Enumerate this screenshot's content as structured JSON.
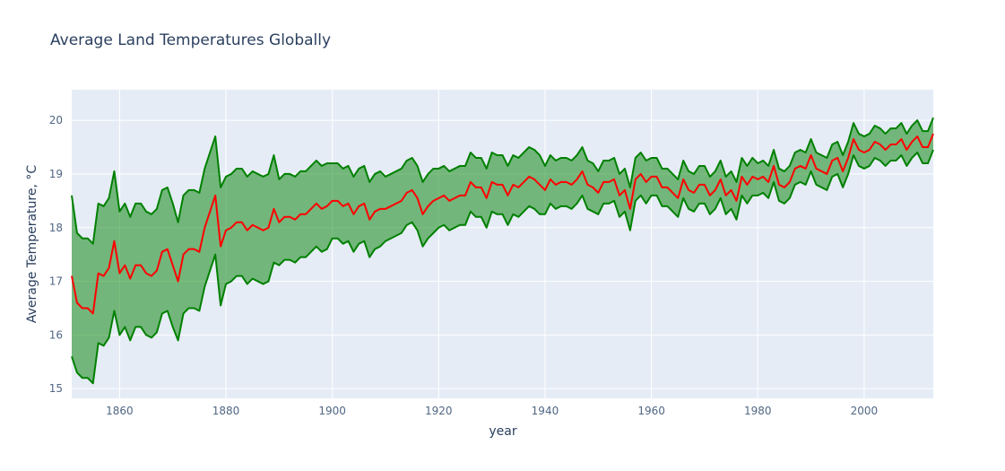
{
  "chart_data": {
    "type": "line",
    "title": "Average Land Temperatures Globally",
    "xlabel": "year",
    "ylabel": "Average Temperature, °C",
    "x": [
      1851,
      1852,
      1853,
      1854,
      1855,
      1856,
      1857,
      1858,
      1859,
      1860,
      1861,
      1862,
      1863,
      1864,
      1865,
      1866,
      1867,
      1868,
      1869,
      1870,
      1871,
      1872,
      1873,
      1874,
      1875,
      1876,
      1877,
      1878,
      1879,
      1880,
      1881,
      1882,
      1883,
      1884,
      1885,
      1886,
      1887,
      1888,
      1889,
      1890,
      1891,
      1892,
      1893,
      1894,
      1895,
      1896,
      1897,
      1898,
      1899,
      1900,
      1901,
      1902,
      1903,
      1904,
      1905,
      1906,
      1907,
      1908,
      1909,
      1910,
      1911,
      1912,
      1913,
      1914,
      1915,
      1916,
      1917,
      1918,
      1919,
      1920,
      1921,
      1922,
      1923,
      1924,
      1925,
      1926,
      1927,
      1928,
      1929,
      1930,
      1931,
      1932,
      1933,
      1934,
      1935,
      1936,
      1937,
      1938,
      1939,
      1940,
      1941,
      1942,
      1943,
      1944,
      1945,
      1946,
      1947,
      1948,
      1949,
      1950,
      1951,
      1952,
      1953,
      1954,
      1955,
      1956,
      1957,
      1958,
      1959,
      1960,
      1961,
      1962,
      1963,
      1964,
      1965,
      1966,
      1967,
      1968,
      1969,
      1970,
      1971,
      1972,
      1973,
      1974,
      1975,
      1976,
      1977,
      1978,
      1979,
      1980,
      1981,
      1982,
      1983,
      1984,
      1985,
      1986,
      1987,
      1988,
      1989,
      1990,
      1991,
      1992,
      1993,
      1994,
      1995,
      1996,
      1997,
      1998,
      1999,
      2000,
      2001,
      2002,
      2003,
      2004,
      2005,
      2006,
      2007,
      2008,
      2009,
      2010,
      2011,
      2012,
      2013
    ],
    "series": [
      {
        "color": "#008000",
        "values": [
          18.6,
          17.9,
          17.8,
          17.8,
          17.7,
          18.45,
          18.4,
          18.55,
          19.05,
          18.3,
          18.45,
          18.2,
          18.45,
          18.45,
          18.3,
          18.25,
          18.35,
          18.7,
          18.75,
          18.45,
          18.1,
          18.6,
          18.7,
          18.7,
          18.65,
          19.1,
          19.4,
          19.7,
          18.75,
          18.95,
          19.0,
          19.1,
          19.1,
          18.95,
          19.05,
          19.0,
          18.95,
          19.0,
          19.35,
          18.9,
          19.0,
          19.0,
          18.95,
          19.05,
          19.05,
          19.15,
          19.25,
          19.15,
          19.2,
          19.2,
          19.2,
          19.1,
          19.15,
          18.95,
          19.1,
          19.15,
          18.85,
          19.0,
          19.05,
          18.95,
          19.0,
          19.05,
          19.1,
          19.25,
          19.3,
          19.15,
          18.85,
          19.0,
          19.1,
          19.1,
          19.15,
          19.05,
          19.1,
          19.15,
          19.15,
          19.4,
          19.3,
          19.3,
          19.1,
          19.4,
          19.35,
          19.35,
          19.15,
          19.35,
          19.3,
          19.4,
          19.5,
          19.45,
          19.35,
          19.15,
          19.35,
          19.25,
          19.3,
          19.3,
          19.25,
          19.35,
          19.5,
          19.25,
          19.2,
          19.05,
          19.25,
          19.25,
          19.3,
          19.0,
          19.1,
          18.75,
          19.3,
          19.4,
          19.25,
          19.3,
          19.3,
          19.1,
          19.1,
          19.0,
          18.9,
          19.25,
          19.05,
          19.0,
          19.15,
          19.15,
          18.95,
          19.05,
          19.25,
          18.95,
          19.05,
          18.85,
          19.3,
          19.15,
          19.3,
          19.2,
          19.25,
          19.15,
          19.45,
          19.1,
          19.05,
          19.15,
          19.4,
          19.45,
          19.4,
          19.65,
          19.4,
          19.35,
          19.3,
          19.55,
          19.6,
          19.35,
          19.6,
          19.95,
          19.75,
          19.7,
          19.75,
          19.9,
          19.85,
          19.75,
          19.85,
          19.85,
          19.95,
          19.75,
          19.9,
          20.0,
          19.8,
          19.8,
          20.05
        ]
      },
      {
        "color": "#008000",
        "values": [
          15.6,
          15.3,
          15.2,
          15.2,
          15.1,
          15.85,
          15.8,
          15.95,
          16.45,
          16.0,
          16.15,
          15.9,
          16.15,
          16.15,
          16.0,
          15.95,
          16.05,
          16.4,
          16.45,
          16.15,
          15.9,
          16.4,
          16.5,
          16.5,
          16.45,
          16.9,
          17.2,
          17.5,
          16.55,
          16.95,
          17.0,
          17.1,
          17.1,
          16.95,
          17.05,
          17.0,
          16.95,
          17.0,
          17.35,
          17.3,
          17.4,
          17.4,
          17.35,
          17.45,
          17.45,
          17.55,
          17.65,
          17.55,
          17.6,
          17.8,
          17.8,
          17.7,
          17.75,
          17.55,
          17.7,
          17.75,
          17.45,
          17.6,
          17.65,
          17.75,
          17.8,
          17.85,
          17.9,
          18.05,
          18.1,
          17.95,
          17.65,
          17.8,
          17.9,
          18.0,
          18.05,
          17.95,
          18.0,
          18.05,
          18.05,
          18.3,
          18.2,
          18.2,
          18.0,
          18.3,
          18.25,
          18.25,
          18.05,
          18.25,
          18.2,
          18.3,
          18.4,
          18.35,
          18.25,
          18.25,
          18.45,
          18.35,
          18.4,
          18.4,
          18.35,
          18.45,
          18.6,
          18.35,
          18.3,
          18.25,
          18.45,
          18.45,
          18.5,
          18.2,
          18.3,
          17.95,
          18.5,
          18.6,
          18.45,
          18.6,
          18.6,
          18.4,
          18.4,
          18.3,
          18.2,
          18.55,
          18.35,
          18.3,
          18.45,
          18.45,
          18.25,
          18.35,
          18.55,
          18.25,
          18.35,
          18.15,
          18.6,
          18.45,
          18.6,
          18.6,
          18.65,
          18.55,
          18.85,
          18.5,
          18.45,
          18.55,
          18.8,
          18.85,
          18.8,
          19.05,
          18.8,
          18.75,
          18.7,
          18.95,
          19.0,
          18.75,
          19.0,
          19.35,
          19.15,
          19.1,
          19.15,
          19.3,
          19.25,
          19.15,
          19.25,
          19.25,
          19.35,
          19.15,
          19.3,
          19.4,
          19.2,
          19.2,
          19.45
        ]
      },
      {
        "color": "#ff0000",
        "values": [
          17.1,
          16.6,
          16.5,
          16.5,
          16.4,
          17.15,
          17.1,
          17.25,
          17.75,
          17.15,
          17.3,
          17.05,
          17.3,
          17.3,
          17.15,
          17.1,
          17.2,
          17.55,
          17.6,
          17.3,
          17.0,
          17.5,
          17.6,
          17.6,
          17.55,
          18.0,
          18.3,
          18.6,
          17.65,
          17.95,
          18.0,
          18.1,
          18.1,
          17.95,
          18.05,
          18.0,
          17.95,
          18.0,
          18.35,
          18.1,
          18.2,
          18.2,
          18.15,
          18.25,
          18.25,
          18.35,
          18.45,
          18.35,
          18.4,
          18.5,
          18.5,
          18.4,
          18.45,
          18.25,
          18.4,
          18.45,
          18.15,
          18.3,
          18.35,
          18.35,
          18.4,
          18.45,
          18.5,
          18.65,
          18.7,
          18.55,
          18.25,
          18.4,
          18.5,
          18.55,
          18.6,
          18.5,
          18.55,
          18.6,
          18.6,
          18.85,
          18.75,
          18.75,
          18.55,
          18.85,
          18.8,
          18.8,
          18.6,
          18.8,
          18.75,
          18.85,
          18.95,
          18.9,
          18.8,
          18.7,
          18.9,
          18.8,
          18.85,
          18.85,
          18.8,
          18.9,
          19.05,
          18.8,
          18.75,
          18.65,
          18.85,
          18.85,
          18.9,
          18.6,
          18.7,
          18.35,
          18.9,
          19.0,
          18.85,
          18.95,
          18.95,
          18.75,
          18.75,
          18.65,
          18.55,
          18.9,
          18.7,
          18.65,
          18.8,
          18.8,
          18.6,
          18.7,
          18.9,
          18.6,
          18.7,
          18.5,
          18.95,
          18.8,
          18.95,
          18.9,
          18.95,
          18.85,
          19.15,
          18.8,
          18.75,
          18.85,
          19.1,
          19.15,
          19.1,
          19.35,
          19.1,
          19.05,
          19.0,
          19.25,
          19.3,
          19.05,
          19.3,
          19.65,
          19.45,
          19.4,
          19.45,
          19.6,
          19.55,
          19.45,
          19.55,
          19.55,
          19.65,
          19.45,
          19.6,
          19.7,
          19.5,
          19.5,
          19.75
        ]
      }
    ],
    "fill_color": "rgba(0,128,0,0.5)",
    "xlim": [
      1851,
      2013
    ],
    "xticks": [
      1860,
      1880,
      1900,
      1920,
      1940,
      1960,
      1980,
      2000
    ],
    "ylim": [
      14.82,
      20.57
    ],
    "yticks": [
      15,
      16,
      17,
      18,
      19,
      20
    ],
    "grid": true
  }
}
